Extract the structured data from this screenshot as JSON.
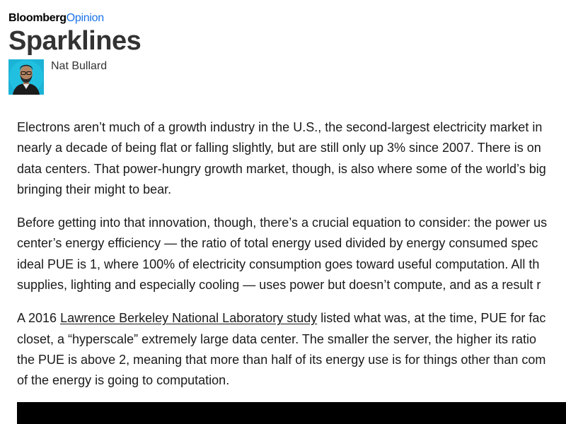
{
  "brand": {
    "part1": "Bloomberg",
    "part2": "Opinion"
  },
  "header": {
    "title": "Sparklines",
    "author": "Nat Bullard"
  },
  "colors": {
    "brand_blue": "#1a73e8",
    "title_gray": "#333333",
    "avatar_bg": "#1bb3d6"
  },
  "article": {
    "p1": {
      "lines": [
        "Electrons aren’t much of a growth industry in the U.S., the second-largest electricity market in",
        "nearly a decade of being flat or falling slightly, but are still only up 3% since 2007. There is on",
        "data centers. That power-hungry growth market, though, is also where some of the world’s big",
        "bringing their might to bear."
      ]
    },
    "p2": {
      "lines": [
        "Before getting into that innovation, though, there’s a crucial equation to consider: the power us",
        "center’s energy efficiency — the ratio of total energy used divided by energy consumed spec",
        "ideal PUE is 1, where 100% of electricity consumption goes toward useful computation. All th",
        "supplies, lighting and especially cooling — uses power but doesn’t compute, and as a result r"
      ]
    },
    "p3": {
      "line1_before": "A 2016 ",
      "link": "Lawrence Berkeley National Laboratory study",
      "line1_after": " listed what was, at the time, PUE for fac",
      "lines": [
        "closet, a “hyperscale” extremely large data center. The smaller the server, the higher its ratio",
        "the PUE is above 2, meaning that more than half of its energy use is for things other than com",
        "of the energy is going to computation."
      ]
    }
  }
}
